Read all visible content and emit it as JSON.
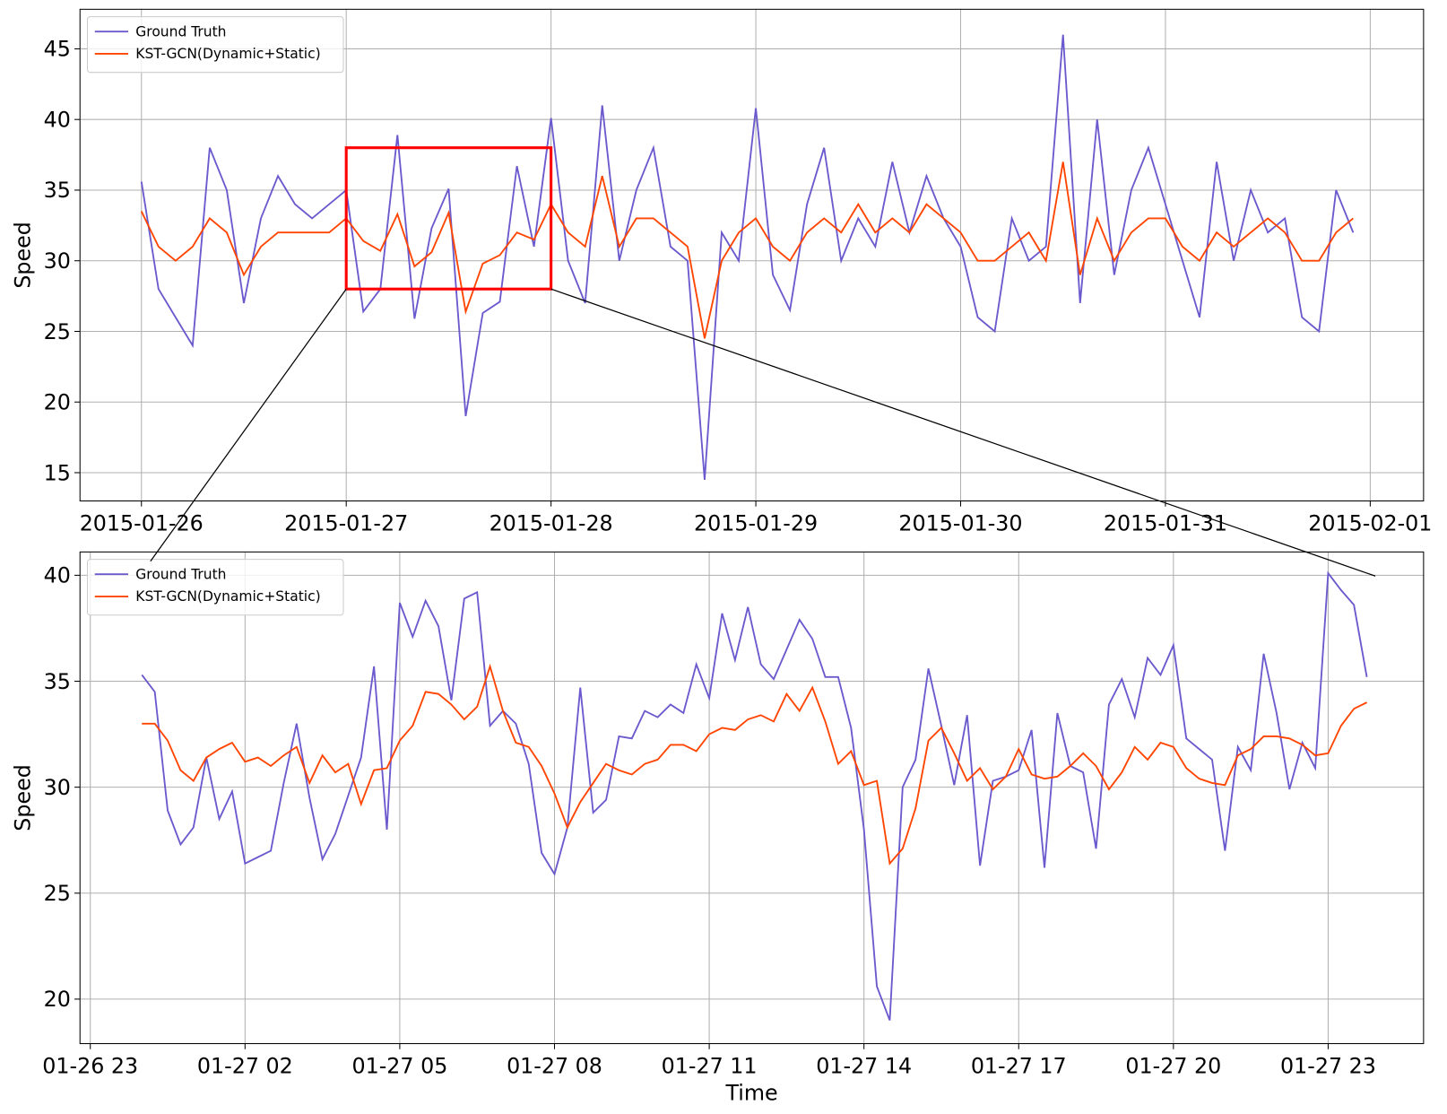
{
  "chart_data": [
    {
      "type": "line",
      "ylabel": "Speed",
      "legend": "upper left",
      "grid": true,
      "xlim": [
        "2015-01-25 16:48",
        "2015-02-01 06:15"
      ],
      "xticks": [
        "2015-01-26",
        "2015-01-27",
        "2015-01-28",
        "2015-01-29",
        "2015-01-30",
        "2015-01-31",
        "2015-02-01"
      ],
      "ylim": [
        13,
        47.8
      ],
      "yticks": [
        15,
        20,
        25,
        30,
        35,
        40,
        45
      ],
      "zoom_box": {
        "x": [
          "2015-01-27",
          "2015-01-28"
        ],
        "y": [
          28,
          38
        ],
        "color": "#ff0000"
      },
      "x": [
        "2015-01-26 00:00",
        "2015-01-26 02:00",
        "2015-01-26 04:00",
        "2015-01-26 06:00",
        "2015-01-26 08:00",
        "2015-01-26 10:00",
        "2015-01-26 12:00",
        "2015-01-26 14:00",
        "2015-01-26 16:00",
        "2015-01-26 18:00",
        "2015-01-26 20:00",
        "2015-01-26 22:00",
        "2015-01-27 00:00",
        "2015-01-27 02:00",
        "2015-01-27 04:00",
        "2015-01-27 06:00",
        "2015-01-27 08:00",
        "2015-01-27 10:00",
        "2015-01-27 12:00",
        "2015-01-27 14:00",
        "2015-01-27 16:00",
        "2015-01-27 18:00",
        "2015-01-27 20:00",
        "2015-01-27 22:00",
        "2015-01-28 00:00",
        "2015-01-28 02:00",
        "2015-01-28 04:00",
        "2015-01-28 06:00",
        "2015-01-28 08:00",
        "2015-01-28 10:00",
        "2015-01-28 12:00",
        "2015-01-28 14:00",
        "2015-01-28 16:00",
        "2015-01-28 18:00",
        "2015-01-28 20:00",
        "2015-01-28 22:00",
        "2015-01-29 00:00",
        "2015-01-29 02:00",
        "2015-01-29 04:00",
        "2015-01-29 06:00",
        "2015-01-29 08:00",
        "2015-01-29 10:00",
        "2015-01-29 12:00",
        "2015-01-29 14:00",
        "2015-01-29 16:00",
        "2015-01-29 18:00",
        "2015-01-29 20:00",
        "2015-01-29 22:00",
        "2015-01-30 00:00",
        "2015-01-30 02:00",
        "2015-01-30 04:00",
        "2015-01-30 06:00",
        "2015-01-30 08:00",
        "2015-01-30 10:00",
        "2015-01-30 12:00",
        "2015-01-30 14:00",
        "2015-01-30 16:00",
        "2015-01-30 18:00",
        "2015-01-30 20:00",
        "2015-01-30 22:00",
        "2015-01-31 00:00",
        "2015-01-31 02:00",
        "2015-01-31 04:00",
        "2015-01-31 06:00",
        "2015-01-31 08:00",
        "2015-01-31 10:00",
        "2015-01-31 12:00",
        "2015-01-31 14:00",
        "2015-01-31 16:00",
        "2015-01-31 18:00",
        "2015-01-31 20:00",
        "2015-01-31 22:00"
      ],
      "series": [
        {
          "name": "Ground Truth",
          "color": "#6a5acd",
          "values": [
            35.6,
            28,
            26,
            24,
            38,
            35,
            27,
            33,
            36,
            34,
            33,
            34,
            35,
            26.4,
            28,
            38.9,
            25.9,
            32.3,
            35.1,
            19,
            26.3,
            27.1,
            36.7,
            31,
            40.1,
            30,
            27,
            41,
            30,
            35,
            38,
            31,
            30,
            14.5,
            32,
            30,
            40.8,
            29,
            26.5,
            34,
            38,
            30,
            33,
            31,
            37,
            32,
            36,
            33,
            31,
            26,
            25,
            33,
            30,
            31,
            46,
            27,
            40,
            29,
            35,
            38,
            34,
            30,
            26,
            37,
            30,
            35,
            32,
            33,
            26,
            25,
            35,
            32
          ]
        },
        {
          "name": "KST-GCN(Dynamic+Static)",
          "color": "#ff4500",
          "values": [
            33.5,
            31,
            30,
            31,
            33,
            32,
            29,
            31,
            32,
            32,
            32,
            32,
            33,
            31.4,
            30.7,
            33.3,
            29.6,
            30.6,
            33.4,
            26.4,
            29.8,
            30.4,
            32,
            31.5,
            34,
            32,
            31,
            36,
            31,
            33,
            33,
            32,
            31,
            24.5,
            30,
            32,
            33,
            31,
            30,
            32,
            33,
            32,
            34,
            32,
            33,
            32,
            34,
            33,
            32,
            30,
            30,
            31,
            32,
            30,
            37,
            29,
            33,
            30,
            32,
            33,
            33,
            31,
            30,
            32,
            31,
            32,
            33,
            32,
            30,
            30,
            32,
            33
          ]
        }
      ]
    },
    {
      "type": "line",
      "ylabel": "Speed",
      "xlabel": "Time",
      "legend": "upper left",
      "grid": true,
      "xlim": [
        "2015-01-26 22:48",
        "2015-01-28 00:51"
      ],
      "xticks": [
        {
          "value": "2015-01-26 23:00",
          "label": "01-26 23"
        },
        {
          "value": "2015-01-27 02:00",
          "label": "01-27 02"
        },
        {
          "value": "2015-01-27 05:00",
          "label": "01-27 05"
        },
        {
          "value": "2015-01-27 08:00",
          "label": "01-27 08"
        },
        {
          "value": "2015-01-27 11:00",
          "label": "01-27 11"
        },
        {
          "value": "2015-01-27 14:00",
          "label": "01-27 14"
        },
        {
          "value": "2015-01-27 17:00",
          "label": "01-27 17"
        },
        {
          "value": "2015-01-27 20:00",
          "label": "01-27 20"
        },
        {
          "value": "2015-01-27 23:00",
          "label": "01-27 23"
        }
      ],
      "ylim": [
        17.9,
        41.1
      ],
      "yticks": [
        20,
        25,
        30,
        35,
        40
      ],
      "x": [
        "2015-01-27 00:00",
        "2015-01-27 00:15",
        "2015-01-27 00:30",
        "2015-01-27 00:45",
        "2015-01-27 01:00",
        "2015-01-27 01:15",
        "2015-01-27 01:30",
        "2015-01-27 01:45",
        "2015-01-27 02:00",
        "2015-01-27 02:15",
        "2015-01-27 02:30",
        "2015-01-27 02:45",
        "2015-01-27 03:00",
        "2015-01-27 03:15",
        "2015-01-27 03:30",
        "2015-01-27 03:45",
        "2015-01-27 04:00",
        "2015-01-27 04:15",
        "2015-01-27 04:30",
        "2015-01-27 04:45",
        "2015-01-27 05:00",
        "2015-01-27 05:15",
        "2015-01-27 05:30",
        "2015-01-27 05:45",
        "2015-01-27 06:00",
        "2015-01-27 06:15",
        "2015-01-27 06:30",
        "2015-01-27 06:45",
        "2015-01-27 07:00",
        "2015-01-27 07:15",
        "2015-01-27 07:30",
        "2015-01-27 07:45",
        "2015-01-27 08:00",
        "2015-01-27 08:15",
        "2015-01-27 08:30",
        "2015-01-27 08:45",
        "2015-01-27 09:00",
        "2015-01-27 09:15",
        "2015-01-27 09:30",
        "2015-01-27 09:45",
        "2015-01-27 10:00",
        "2015-01-27 10:15",
        "2015-01-27 10:30",
        "2015-01-27 10:45",
        "2015-01-27 11:00",
        "2015-01-27 11:15",
        "2015-01-27 11:30",
        "2015-01-27 11:45",
        "2015-01-27 12:00",
        "2015-01-27 12:15",
        "2015-01-27 12:30",
        "2015-01-27 12:45",
        "2015-01-27 13:00",
        "2015-01-27 13:15",
        "2015-01-27 13:30",
        "2015-01-27 13:45",
        "2015-01-27 14:00",
        "2015-01-27 14:15",
        "2015-01-27 14:30",
        "2015-01-27 14:45",
        "2015-01-27 15:00",
        "2015-01-27 15:15",
        "2015-01-27 15:30",
        "2015-01-27 15:45",
        "2015-01-27 16:00",
        "2015-01-27 16:15",
        "2015-01-27 16:30",
        "2015-01-27 16:45",
        "2015-01-27 17:00",
        "2015-01-27 17:15",
        "2015-01-27 17:30",
        "2015-01-27 17:45",
        "2015-01-27 18:00",
        "2015-01-27 18:15",
        "2015-01-27 18:30",
        "2015-01-27 18:45",
        "2015-01-27 19:00",
        "2015-01-27 19:15",
        "2015-01-27 19:30",
        "2015-01-27 19:45",
        "2015-01-27 20:00",
        "2015-01-27 20:15",
        "2015-01-27 20:30",
        "2015-01-27 20:45",
        "2015-01-27 21:00",
        "2015-01-27 21:15",
        "2015-01-27 21:30",
        "2015-01-27 21:45",
        "2015-01-27 22:00",
        "2015-01-27 22:15",
        "2015-01-27 22:30",
        "2015-01-27 22:45",
        "2015-01-27 23:00",
        "2015-01-27 23:15",
        "2015-01-27 23:30",
        "2015-01-27 23:45"
      ],
      "series": [
        {
          "name": "Ground Truth",
          "color": "#6a5acd",
          "values": [
            35.3,
            34.5,
            28.9,
            27.3,
            28.1,
            31.4,
            28.5,
            29.8,
            26.4,
            26.7,
            27.0,
            30.2,
            33.0,
            29.5,
            26.6,
            27.8,
            29.6,
            31.4,
            35.7,
            28.0,
            38.7,
            37.1,
            38.8,
            37.6,
            34.1,
            38.9,
            39.2,
            32.9,
            33.6,
            33.0,
            31.1,
            26.9,
            25.9,
            28.1,
            34.7,
            28.8,
            29.4,
            32.4,
            32.3,
            33.6,
            33.3,
            33.9,
            33.5,
            35.8,
            34.2,
            38.2,
            36.0,
            38.5,
            35.8,
            35.1,
            36.5,
            37.9,
            37.0,
            35.2,
            35.2,
            32.8,
            28.0,
            20.6,
            19.0,
            30.0,
            31.3,
            35.6,
            32.9,
            30.1,
            33.4,
            26.3,
            30.3,
            30.5,
            30.8,
            32.7,
            26.2,
            33.5,
            31.0,
            30.7,
            27.1,
            33.9,
            35.1,
            33.3,
            36.1,
            35.3,
            36.7,
            32.3,
            31.8,
            31.3,
            27.0,
            31.9,
            30.8,
            36.3,
            33.5,
            29.9,
            32.1,
            30.9,
            40.1,
            39.3,
            38.6,
            35.2
          ]
        },
        {
          "name": "KST-GCN(Dynamic+Static)",
          "color": "#ff4500",
          "values": [
            33.0,
            33.0,
            32.2,
            30.8,
            30.3,
            31.4,
            31.8,
            32.1,
            31.2,
            31.4,
            31.0,
            31.5,
            31.9,
            30.2,
            31.5,
            30.7,
            31.1,
            29.2,
            30.8,
            30.9,
            32.2,
            32.9,
            34.5,
            34.4,
            33.9,
            33.2,
            33.8,
            35.7,
            33.6,
            32.1,
            31.9,
            31.0,
            29.7,
            28.1,
            29.3,
            30.2,
            31.1,
            30.8,
            30.6,
            31.1,
            31.3,
            32.0,
            32.0,
            31.7,
            32.5,
            32.8,
            32.7,
            33.2,
            33.4,
            33.1,
            34.4,
            33.6,
            34.7,
            33.1,
            31.1,
            31.7,
            30.1,
            30.3,
            26.4,
            27.1,
            29.0,
            32.2,
            32.8,
            31.6,
            30.3,
            30.9,
            29.9,
            30.5,
            31.8,
            30.6,
            30.4,
            30.5,
            31.0,
            31.6,
            31.0,
            29.9,
            30.7,
            31.9,
            31.3,
            32.1,
            31.9,
            30.9,
            30.4,
            30.2,
            30.1,
            31.5,
            31.8,
            32.4,
            32.4,
            32.3,
            32.0,
            31.5,
            31.6,
            32.9,
            33.7,
            34.0
          ]
        }
      ]
    }
  ]
}
